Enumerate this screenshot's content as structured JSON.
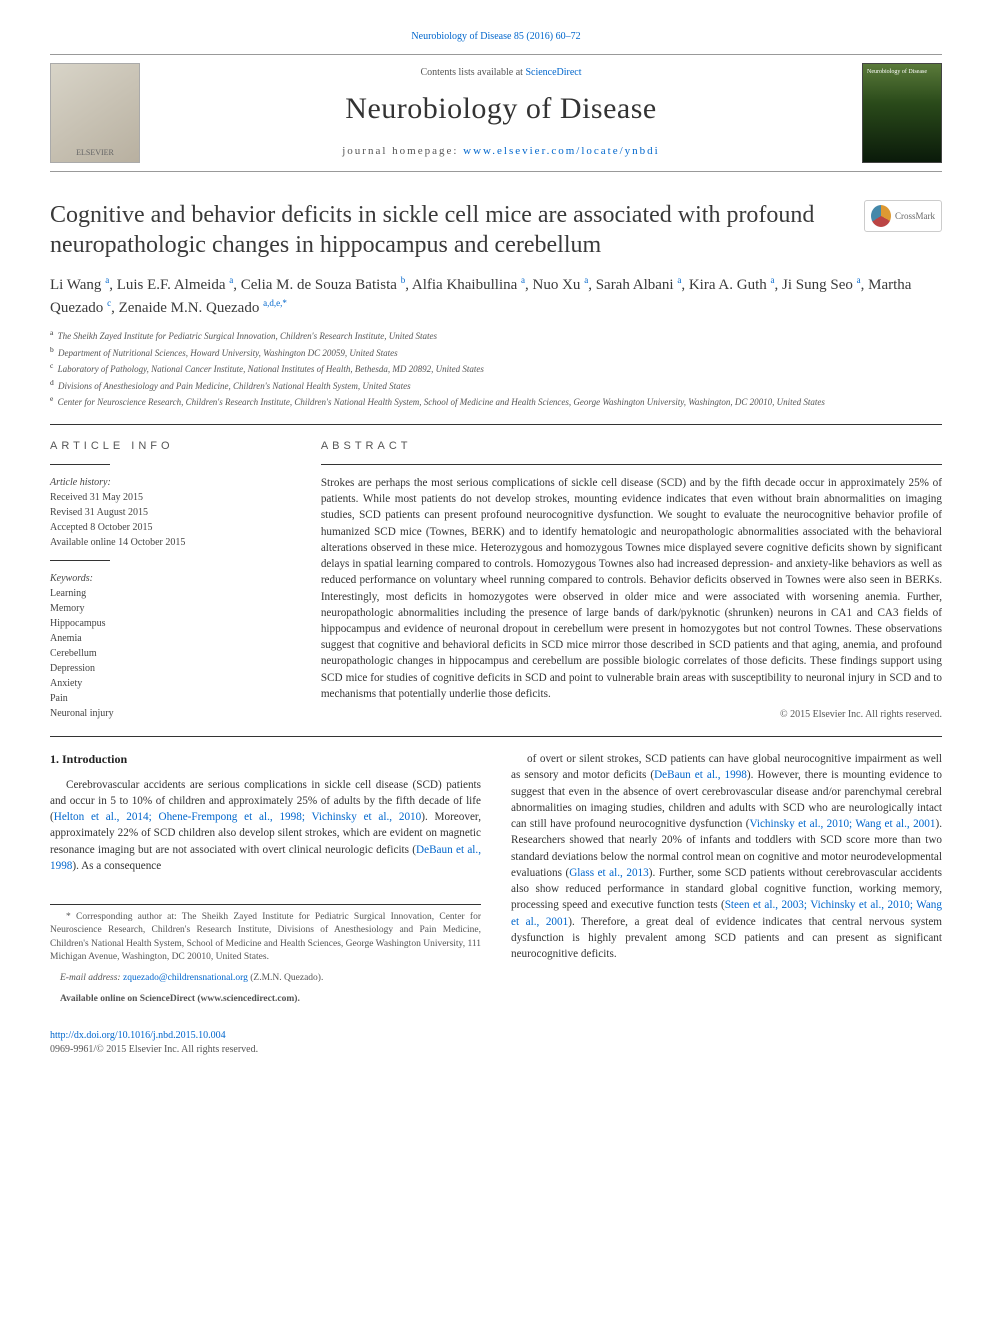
{
  "top_citation": {
    "journal": "Neurobiology of Disease",
    "vol": "85 (2016) 60–72"
  },
  "masthead": {
    "contents_prefix": "Contents lists available at ",
    "contents_link": "ScienceDirect",
    "journal": "Neurobiology of Disease",
    "homepage_label": "journal homepage: ",
    "homepage_url": "www.elsevier.com/locate/ynbdi",
    "publisher_logo_label": "ELSEVIER",
    "cover_caption": "Neurobiology of Disease"
  },
  "crossmark_label": "CrossMark",
  "title": "Cognitive and behavior deficits in sickle cell mice are associated with profound neuropathologic changes in hippocampus and cerebellum",
  "authors_html": "Li Wang <sup>a</sup>, Luis E.F. Almeida <sup>a</sup>, Celia M. de Souza Batista <sup>b</sup>, Alfia Khaibullina <sup>a</sup>, Nuo Xu <sup>a</sup>, Sarah Albani <sup>a</sup>, Kira A. Guth <sup>a</sup>, Ji Sung Seo <sup>a</sup>, Martha Quezado <sup>c</sup>, Zenaide M.N. Quezado <sup>a,d,e,*</sup>",
  "affiliations": [
    {
      "sup": "a",
      "text": "The Sheikh Zayed Institute for Pediatric Surgical Innovation, Children's Research Institute, United States"
    },
    {
      "sup": "b",
      "text": "Department of Nutritional Sciences, Howard University, Washington DC 20059, United States"
    },
    {
      "sup": "c",
      "text": "Laboratory of Pathology, National Cancer Institute, National Institutes of Health, Bethesda, MD 20892, United States"
    },
    {
      "sup": "d",
      "text": "Divisions of Anesthesiology and Pain Medicine, Children's National Health System, United States"
    },
    {
      "sup": "e",
      "text": "Center for Neuroscience Research, Children's Research Institute, Children's National Health System, School of Medicine and Health Sciences, George Washington University, Washington, DC 20010, United States"
    }
  ],
  "article_info": {
    "heading": "ARTICLE INFO",
    "history_label": "Article history:",
    "history": [
      "Received 31 May 2015",
      "Revised 31 August 2015",
      "Accepted 8 October 2015",
      "Available online 14 October 2015"
    ],
    "keywords_label": "Keywords:",
    "keywords": [
      "Learning",
      "Memory",
      "Hippocampus",
      "Anemia",
      "Cerebellum",
      "Depression",
      "Anxiety",
      "Pain",
      "Neuronal injury"
    ]
  },
  "abstract": {
    "heading": "ABSTRACT",
    "text": "Strokes are perhaps the most serious complications of sickle cell disease (SCD) and by the fifth decade occur in approximately 25% of patients. While most patients do not develop strokes, mounting evidence indicates that even without brain abnormalities on imaging studies, SCD patients can present profound neurocognitive dysfunction. We sought to evaluate the neurocognitive behavior profile of humanized SCD mice (Townes, BERK) and to identify hematologic and neuropathologic abnormalities associated with the behavioral alterations observed in these mice. Heterozygous and homozygous Townes mice displayed severe cognitive deficits shown by significant delays in spatial learning compared to controls. Homozygous Townes also had increased depression- and anxiety-like behaviors as well as reduced performance on voluntary wheel running compared to controls. Behavior deficits observed in Townes were also seen in BERKs. Interestingly, most deficits in homozygotes were observed in older mice and were associated with worsening anemia. Further, neuropathologic abnormalities including the presence of large bands of dark/pyknotic (shrunken) neurons in CA1 and CA3 fields of hippocampus and evidence of neuronal dropout in cerebellum were present in homozygotes but not control Townes. These observations suggest that cognitive and behavioral deficits in SCD mice mirror those described in SCD patients and that aging, anemia, and profound neuropathologic changes in hippocampus and cerebellum are possible biologic correlates of those deficits. These findings support using SCD mice for studies of cognitive deficits in SCD and point to vulnerable brain areas with susceptibility to neuronal injury in SCD and to mechanisms that potentially underlie those deficits.",
    "copyright": "© 2015 Elsevier Inc. All rights reserved."
  },
  "intro": {
    "heading": "1. Introduction",
    "col1": "Cerebrovascular accidents are serious complications in sickle cell disease (SCD) patients and occur in 5 to 10% of children and approximately 25% of adults by the fifth decade of life (<a class='ref' href='#'>Helton et al., 2014; Ohene-Frempong et al., 1998; Vichinsky et al., 2010</a>). Moreover, approximately 22% of SCD children also develop silent strokes, which are evident on magnetic resonance imaging but are not associated with overt clinical neurologic deficits (<a class='ref' href='#'>DeBaun et al., 1998</a>). As a consequence",
    "col2": "of overt or silent strokes, SCD patients can have global neurocognitive impairment as well as sensory and motor deficits (<a class='ref' href='#'>DeBaun et al., 1998</a>). However, there is mounting evidence to suggest that even in the absence of overt cerebrovascular disease and/or parenchymal cerebral abnormalities on imaging studies, children and adults with SCD who are neurologically intact can still have profound neurocognitive dysfunction (<a class='ref' href='#'>Vichinsky et al., 2010; Wang et al., 2001</a>). Researchers showed that nearly 20% of infants and toddlers with SCD score more than two standard deviations below the normal control mean on cognitive and motor neurodevelopmental evaluations (<a class='ref' href='#'>Glass et al., 2013</a>). Further, some SCD patients without cerebrovascular accidents also show reduced performance in standard global cognitive function, working memory, processing speed and executive function tests (<a class='ref' href='#'>Steen et al., 2003; Vichinsky et al., 2010; Wang et al., 2001</a>). Therefore, a great deal of evidence indicates that central nervous system dysfunction is highly prevalent among SCD patients and can present as significant neurocognitive deficits."
  },
  "corresponding": {
    "marker": "*",
    "text": "Corresponding author at: The Sheikh Zayed Institute for Pediatric Surgical Innovation, Center for Neuroscience Research, Children's Research Institute, Divisions of Anesthesiology and Pain Medicine, Children's National Health System, School of Medicine and Health Sciences, George Washington University, 111 Michigan Avenue, Washington, DC 20010, United States.",
    "email_label": "E-mail address: ",
    "email": "zquezado@childrensnational.org",
    "email_name": " (Z.M.N. Quezado).",
    "avail": "Available online on ScienceDirect (www.sciencedirect.com)."
  },
  "footer": {
    "doi": "http://dx.doi.org/10.1016/j.nbd.2015.10.004",
    "issn_line": "0969-9961/© 2015 Elsevier Inc. All rights reserved."
  }
}
